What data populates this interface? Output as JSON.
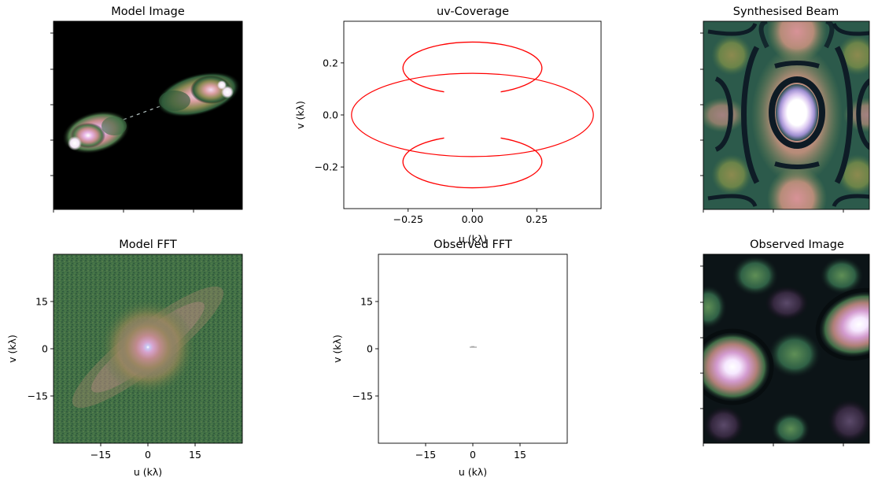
{
  "chart_data": [
    {
      "type": "heatmap",
      "title": "Model Image",
      "xlabel": "",
      "ylabel": "",
      "x_ticks": [
        "",
        "",
        ""
      ],
      "y_ticks": [
        "",
        "",
        "",
        "",
        ""
      ],
      "colormap": "cubehelix",
      "description_of_content": "double-lobed radio galaxy jet on black background"
    },
    {
      "type": "scatter",
      "title": "uv-Coverage",
      "xlabel": "u (kλ)",
      "ylabel": "v (kλ)",
      "xlim": [
        -0.5,
        0.5
      ],
      "ylim": [
        -0.36,
        0.36
      ],
      "x_ticks": [
        -0.25,
        0.0,
        0.25
      ],
      "x_tick_labels": [
        "−0.25",
        "0.00",
        "0.25"
      ],
      "y_ticks": [
        -0.2,
        0.0,
        0.2
      ],
      "y_tick_labels": [
        "−0.2",
        "0.0",
        "0.2"
      ],
      "color": "#ff0000",
      "tracks": [
        {
          "cx": 0.0,
          "cy": 0.0,
          "rx": 0.47,
          "ry": 0.16,
          "gap_deg": [],
          "arc": "full"
        },
        {
          "cx": 0.0,
          "cy": 0.18,
          "rx": 0.27,
          "ry": 0.1,
          "arc": "partial",
          "gap": "bottom"
        },
        {
          "cx": 0.0,
          "cy": -0.18,
          "rx": 0.27,
          "ry": 0.1,
          "arc": "partial",
          "gap": "top"
        }
      ]
    },
    {
      "type": "heatmap",
      "title": "Synthesised Beam",
      "xlabel": "",
      "ylabel": "",
      "x_ticks": [
        "",
        "",
        ""
      ],
      "y_ticks": [
        "",
        "",
        "",
        "",
        ""
      ],
      "colormap": "cubehelix"
    },
    {
      "type": "heatmap",
      "title": "Model FFT",
      "xlabel": "u (kλ)",
      "ylabel": "v (kλ)",
      "xlim": [
        -30,
        30
      ],
      "ylim": [
        -30,
        30
      ],
      "x_ticks": [
        -15,
        0,
        15
      ],
      "x_tick_labels": [
        "−15",
        "0",
        "15"
      ],
      "y_ticks": [
        15,
        0,
        -15
      ],
      "y_tick_labels": [
        "15",
        "0",
        "−15"
      ],
      "colormap": "cubehelix"
    },
    {
      "type": "heatmap",
      "title": "Observed FFT",
      "xlabel": "u (kλ)",
      "ylabel": "v (kλ)",
      "xlim": [
        -30,
        30
      ],
      "ylim": [
        -30,
        30
      ],
      "x_ticks": [
        -15,
        0,
        15
      ],
      "x_tick_labels": [
        "−15",
        "0",
        "15"
      ],
      "y_ticks": [
        15,
        0,
        -15
      ],
      "y_tick_labels": [
        "15",
        "0",
        "−15"
      ],
      "colormap": "cubehelix_r"
    },
    {
      "type": "heatmap",
      "title": "Observed Image",
      "xlabel": "",
      "ylabel": "",
      "x_ticks": [
        "",
        "",
        ""
      ],
      "y_ticks": [
        "",
        "",
        "",
        "",
        ""
      ],
      "colormap": "cubehelix"
    }
  ]
}
